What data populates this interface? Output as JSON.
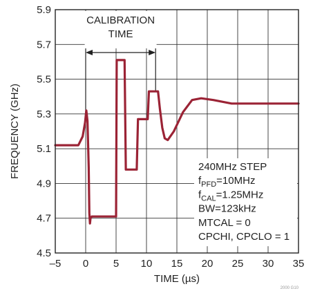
{
  "chart_data": {
    "type": "line",
    "xlabel": "TIME (µs)",
    "ylabel": "FREQUENCY (GHz)",
    "xlim": [
      -5,
      35
    ],
    "ylim": [
      4.5,
      5.9
    ],
    "x_ticks": [
      "–5",
      "0",
      "5",
      "10",
      "15",
      "20",
      "25",
      "30",
      "35"
    ],
    "y_ticks": [
      "4.5",
      "4.7",
      "4.9",
      "5.1",
      "5.3",
      "5.5",
      "5.7",
      "5.9"
    ],
    "grid": true,
    "line_color": "#9b2335",
    "series": [
      {
        "x": [
          -5,
          -1.2,
          -0.5,
          -0.1,
          0.1,
          0.3,
          0.5,
          0.6,
          0.7,
          0.8,
          1.0,
          1.5,
          4.0,
          4.5,
          5.0,
          5.1,
          6.4,
          6.6,
          7.0,
          8.4,
          8.6,
          10.2,
          10.4,
          11.9,
          12.2,
          12.6,
          13.0,
          13.5,
          14.5,
          16,
          17.5,
          19,
          21,
          24,
          27,
          30,
          33,
          35
        ],
        "y": [
          5.12,
          5.12,
          5.17,
          5.25,
          5.32,
          5.26,
          4.99,
          4.73,
          4.67,
          4.7,
          4.71,
          4.71,
          4.71,
          4.71,
          4.71,
          5.61,
          5.61,
          4.98,
          4.98,
          4.98,
          5.27,
          5.27,
          5.43,
          5.43,
          5.33,
          5.22,
          5.16,
          5.15,
          5.2,
          5.31,
          5.38,
          5.39,
          5.38,
          5.36,
          5.36,
          5.36,
          5.36,
          5.36
        ]
      }
    ],
    "annotations": {
      "calibration_line1": "CALIBRATION",
      "calibration_line2": "TIME",
      "calibration_start_x": 0,
      "calibration_end_x": 11.5,
      "info": [
        {
          "main": "240MHz STEP",
          "sub": "",
          "rest": ""
        },
        {
          "main": "f",
          "sub": "PFD",
          "rest": "=10MHz"
        },
        {
          "main": "f",
          "sub": "CAL",
          "rest": "=1.25MHz"
        },
        {
          "main": "BW=123kHz",
          "sub": "",
          "rest": ""
        },
        {
          "main": "MTCAL = 0",
          "sub": "",
          "rest": ""
        },
        {
          "main": "CPCHI, CPCLO = 1",
          "sub": "",
          "rest": ""
        }
      ]
    },
    "figure_id": "2000 G10"
  }
}
